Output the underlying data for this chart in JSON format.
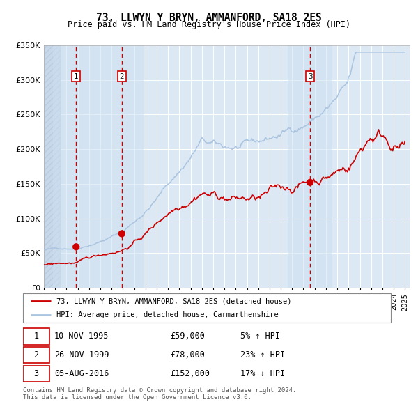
{
  "title": "73, LLWYN Y BRYN, AMMANFORD, SA18 2ES",
  "subtitle": "Price paid vs. HM Land Registry's House Price Index (HPI)",
  "sale_dates": [
    "1995-11-10",
    "1999-11-26",
    "2016-08-05"
  ],
  "sale_prices": [
    59000,
    78000,
    152000
  ],
  "sale_labels": [
    "1",
    "2",
    "3"
  ],
  "legend_line1": "73, LLWYN Y BRYN, AMMANFORD, SA18 2ES (detached house)",
  "legend_line2": "HPI: Average price, detached house, Carmarthenshire",
  "table_rows": [
    [
      "1",
      "10-NOV-1995",
      "£59,000",
      "5% ↑ HPI"
    ],
    [
      "2",
      "26-NOV-1999",
      "£78,000",
      "23% ↑ HPI"
    ],
    [
      "3",
      "05-AUG-2016",
      "£152,000",
      "17% ↓ HPI"
    ]
  ],
  "footer": "Contains HM Land Registry data © Crown copyright and database right 2024.\nThis data is licensed under the Open Government Licence v3.0.",
  "hpi_color": "#aac4e0",
  "property_color": "#cc0000",
  "sale_dot_color": "#cc0000",
  "background_chart": "#dce9f5",
  "ylim": [
    0,
    350000
  ],
  "yticks": [
    0,
    50000,
    100000,
    150000,
    200000,
    250000,
    300000,
    350000
  ],
  "ytick_labels": [
    "£0",
    "£50K",
    "£100K",
    "£150K",
    "£200K",
    "£250K",
    "£300K",
    "£350K"
  ]
}
